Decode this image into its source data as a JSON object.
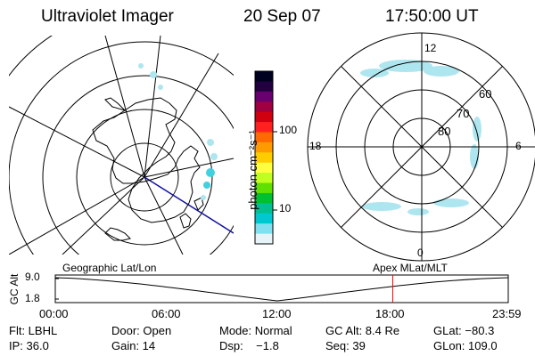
{
  "header": {
    "instrument": "Ultraviolet Imager",
    "date": "20 Sep 07",
    "time": "17:50:00 UT"
  },
  "colorbar": {
    "unit_label": "photon cm⁻²s⁻¹",
    "ticks": [
      "100",
      "10"
    ],
    "colors": [
      "#000020",
      "#220040",
      "#6a0070",
      "#a00040",
      "#d00010",
      "#ff2020",
      "#ff6a00",
      "#ff9a00",
      "#ffcc00",
      "#ffff40",
      "#c0ff20",
      "#60e000",
      "#00c030",
      "#00c090",
      "#00c8d0",
      "#80e0f0",
      "#e6f4f8"
    ]
  },
  "geo_map": {
    "caption": "Geographic Lat/Lon"
  },
  "polar_map": {
    "caption": "Apex MLat/MLT",
    "mlt_labels": {
      "top": "12",
      "left": "18",
      "right": "6",
      "bottom": "0"
    },
    "mlat_labels": [
      "60",
      "70",
      "80"
    ]
  },
  "timeline": {
    "axis_label": "GC Alt",
    "y_ticks": [
      "9.0",
      "1.8"
    ],
    "x_ticks": [
      "00:00",
      "06:00",
      "12:00",
      "18:00",
      "23:59"
    ],
    "current_time_fraction": 0.745,
    "marker_color": "#ff0000"
  },
  "info": {
    "row1": [
      {
        "name": "filter",
        "text": "Flt: LBHL"
      },
      {
        "name": "door",
        "text": "Door: Open"
      },
      {
        "name": "mode",
        "text": "Mode: Normal"
      },
      {
        "name": "gc-alt",
        "text": "GC Alt: 8.4 Re"
      },
      {
        "name": "glat",
        "text": "GLat: −80.3"
      }
    ],
    "row2": [
      {
        "name": "ip",
        "text": "IP: 36.0"
      },
      {
        "name": "gain",
        "text": "Gain: 14"
      },
      {
        "name": "dsp",
        "text": "Dsp:    −1.8"
      },
      {
        "name": "seq",
        "text": "Seq: 39"
      },
      {
        "name": "glon",
        "text": "GLon: 109.0"
      }
    ]
  }
}
